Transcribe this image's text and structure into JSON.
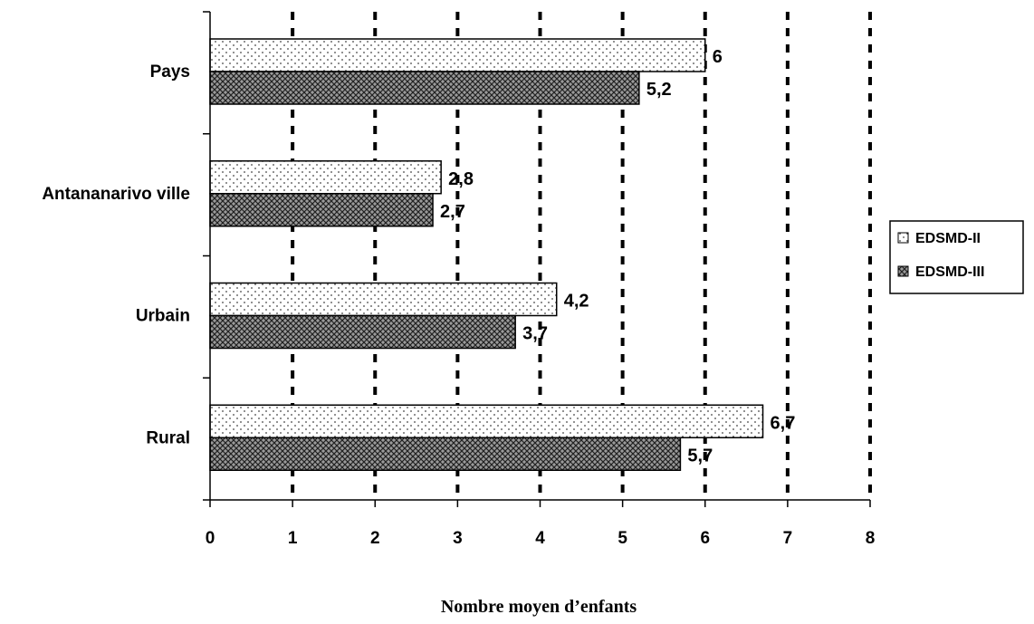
{
  "chart_data": {
    "type": "bar",
    "orientation": "horizontal",
    "categories": [
      "Pays",
      "Antananarivo ville",
      "Urbain",
      "Rural"
    ],
    "series": [
      {
        "name": "EDSMD-II",
        "values": [
          6,
          2.8,
          4.2,
          6.7
        ],
        "labels": [
          "6",
          "2,8",
          "4,2",
          "6,7"
        ],
        "pattern": "dots"
      },
      {
        "name": "EDSMD-III",
        "values": [
          5.2,
          2.7,
          3.7,
          5.7
        ],
        "labels": [
          "5,2",
          "2,7",
          "3,7",
          "5,7"
        ],
        "pattern": "crosshatch"
      }
    ],
    "xlim": [
      0,
      8
    ],
    "xticks": [
      "0",
      "1",
      "2",
      "3",
      "4",
      "5",
      "6",
      "7",
      "8"
    ],
    "xlabel": "Nombre moyen d’enfants",
    "ylabel": "",
    "title": "",
    "grid": "vertical dashed",
    "legend": "right"
  }
}
